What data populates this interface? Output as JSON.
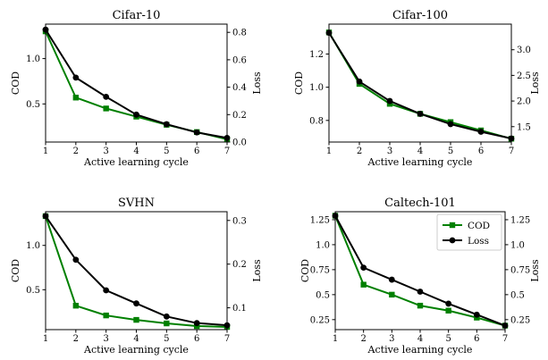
{
  "chart_data": [
    {
      "type": "line",
      "title": "Cifar-10",
      "xlabel": "Active learning cycle",
      "ylabel": "COD",
      "ylabel_right": "Loss",
      "x": [
        1,
        2,
        3,
        4,
        5,
        6,
        7
      ],
      "xlim": [
        1,
        7
      ],
      "ylim": [
        0.08,
        1.38
      ],
      "ylim_right": [
        0.0,
        0.86
      ],
      "yticks": [
        0.5,
        1.0
      ],
      "yticks_right": [
        0.0,
        0.2,
        0.4,
        0.6,
        0.8
      ],
      "series": [
        {
          "name": "COD",
          "axis": "left",
          "color": "#008000",
          "marker": "square",
          "values": [
            1.3,
            0.57,
            0.45,
            0.36,
            0.27,
            0.19,
            0.11
          ]
        },
        {
          "name": "Loss",
          "axis": "right",
          "color": "#000000",
          "marker": "circle",
          "values": [
            0.82,
            0.47,
            0.33,
            0.2,
            0.13,
            0.07,
            0.03
          ]
        }
      ]
    },
    {
      "type": "line",
      "title": "Cifar-100",
      "xlabel": "Active learning cycle",
      "ylabel": "COD",
      "ylabel_right": "Loss",
      "x": [
        1,
        2,
        3,
        4,
        5,
        6,
        7
      ],
      "xlim": [
        1,
        7
      ],
      "ylim": [
        0.67,
        1.38
      ],
      "ylim_right": [
        1.2,
        3.5
      ],
      "yticks": [
        0.8,
        1.0,
        1.2
      ],
      "yticks_right": [
        1.5,
        2.0,
        2.5,
        3.0
      ],
      "series": [
        {
          "name": "COD",
          "axis": "left",
          "color": "#008000",
          "marker": "square",
          "values": [
            1.33,
            1.02,
            0.9,
            0.84,
            0.79,
            0.74,
            0.69
          ]
        },
        {
          "name": "Loss",
          "axis": "right",
          "color": "#000000",
          "marker": "circle",
          "values": [
            3.33,
            2.38,
            2.0,
            1.75,
            1.55,
            1.4,
            1.27
          ]
        }
      ]
    },
    {
      "type": "line",
      "title": "SVHN",
      "xlabel": "Active learning cycle",
      "ylabel": "COD",
      "ylabel_right": "Loss",
      "x": [
        1,
        2,
        3,
        4,
        5,
        6,
        7
      ],
      "xlim": [
        1,
        7
      ],
      "ylim": [
        0.05,
        1.38
      ],
      "ylim_right": [
        0.05,
        0.32
      ],
      "yticks": [
        0.5,
        1.0
      ],
      "yticks_right": [
        0.1,
        0.2,
        0.3
      ],
      "series": [
        {
          "name": "COD",
          "axis": "left",
          "color": "#008000",
          "marker": "square",
          "values": [
            1.33,
            0.32,
            0.21,
            0.16,
            0.12,
            0.09,
            0.08
          ]
        },
        {
          "name": "Loss",
          "axis": "right",
          "color": "#000000",
          "marker": "circle",
          "values": [
            0.31,
            0.21,
            0.14,
            0.11,
            0.08,
            0.065,
            0.06
          ]
        }
      ]
    },
    {
      "type": "line",
      "title": "Caltech-101",
      "xlabel": "Active learning cycle",
      "ylabel": "COD",
      "ylabel_right": "Loss",
      "x": [
        1,
        2,
        3,
        4,
        5,
        6,
        7
      ],
      "xlim": [
        1,
        7
      ],
      "ylim": [
        0.15,
        1.33
      ],
      "ylim_right": [
        0.15,
        1.33
      ],
      "yticks": [
        0.25,
        0.5,
        0.75,
        1.0,
        1.25
      ],
      "yticks_right": [
        0.25,
        0.5,
        0.75,
        1.0,
        1.25
      ],
      "legend": "top-right",
      "series": [
        {
          "name": "COD",
          "axis": "left",
          "color": "#008000",
          "marker": "square",
          "values": [
            1.29,
            0.6,
            0.5,
            0.39,
            0.34,
            0.27,
            0.19
          ]
        },
        {
          "name": "Loss",
          "axis": "right",
          "color": "#000000",
          "marker": "circle",
          "values": [
            1.29,
            0.77,
            0.65,
            0.53,
            0.41,
            0.3,
            0.19
          ]
        }
      ]
    }
  ]
}
